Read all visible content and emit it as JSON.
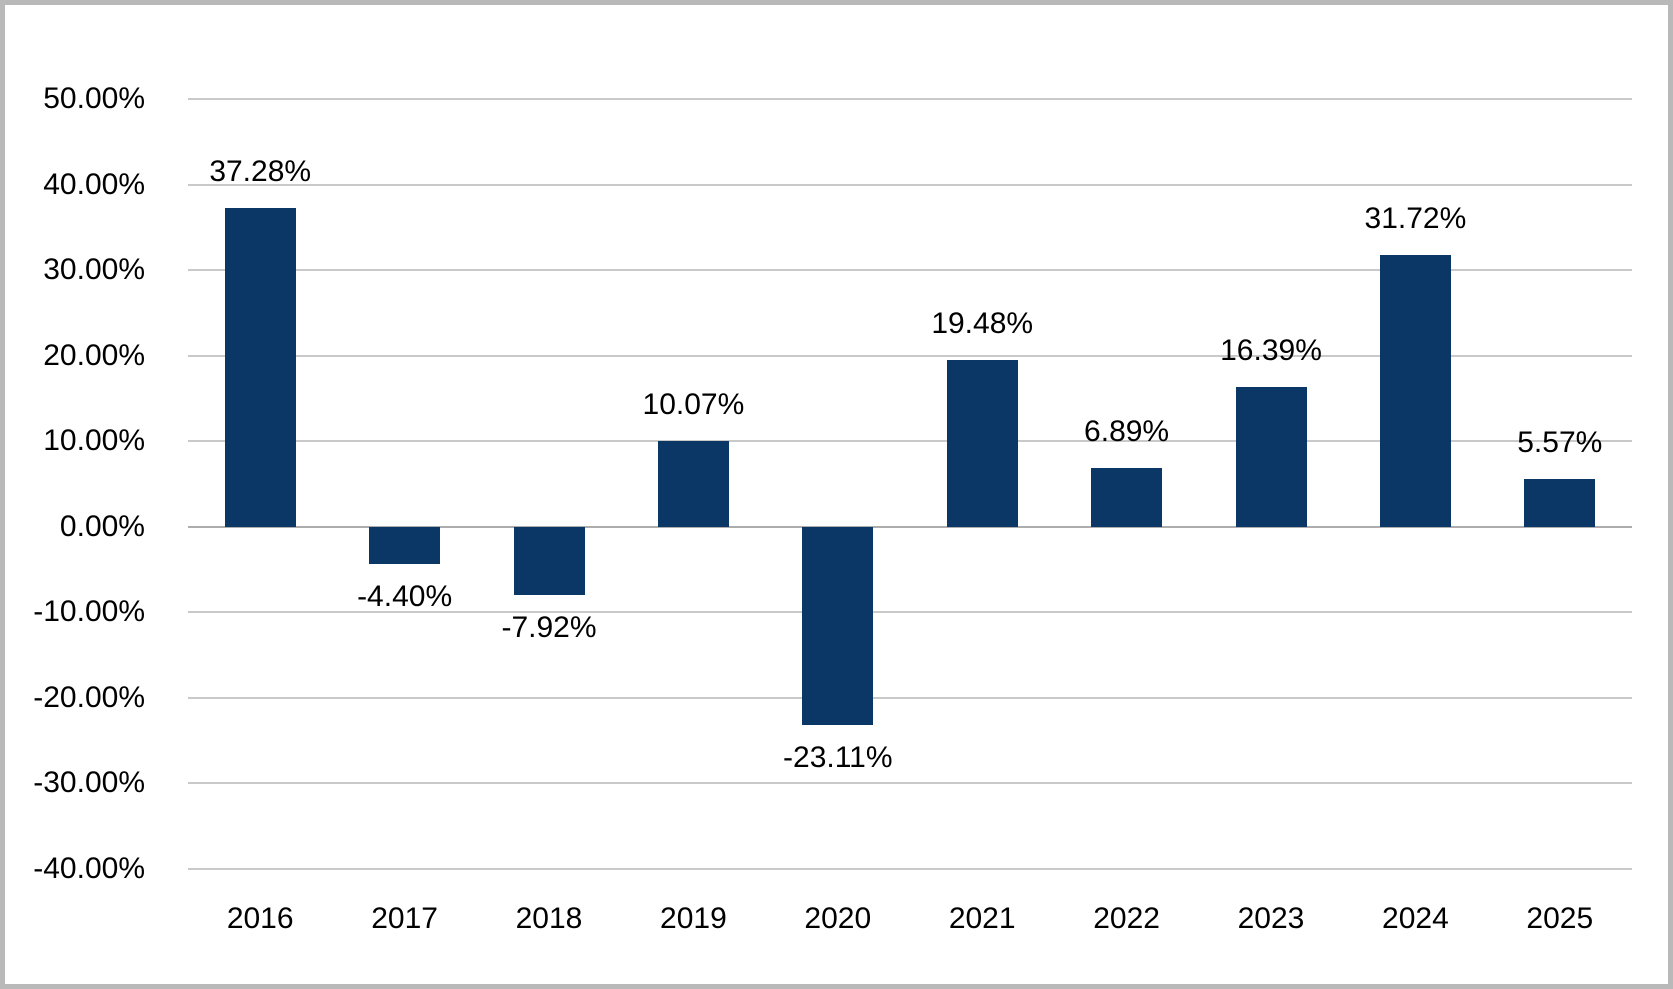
{
  "chart_data": {
    "type": "bar",
    "title": "",
    "xlabel": "",
    "ylabel": "",
    "categories": [
      "2016",
      "2017",
      "2018",
      "2019",
      "2020",
      "2021",
      "2022",
      "2023",
      "2024",
      "2025"
    ],
    "values": [
      37.28,
      -4.4,
      -7.92,
      10.07,
      -23.11,
      19.48,
      6.89,
      16.39,
      31.72,
      5.57
    ],
    "labels": [
      "37.28%",
      "-4.40%",
      "-7.92%",
      "10.07%",
      "-23.11%",
      "19.48%",
      "6.89%",
      "16.39%",
      "31.72%",
      "5.57%"
    ],
    "ylim": [
      -40,
      50
    ],
    "ytick_step": 10,
    "ytick_labels": [
      "50.00%",
      "40.00%",
      "30.00%",
      "20.00%",
      "10.00%",
      "0.00%",
      "-10.00%",
      "-20.00%",
      "-30.00%",
      "-40.00%"
    ],
    "grid": true,
    "legend": false,
    "colors": {
      "bar": "#0a3766",
      "gridline": "#c9c9c9",
      "zero_line": "#adadad",
      "frame_border": "#b9b9b9",
      "text": "#000000",
      "background": "#ffffff"
    }
  }
}
